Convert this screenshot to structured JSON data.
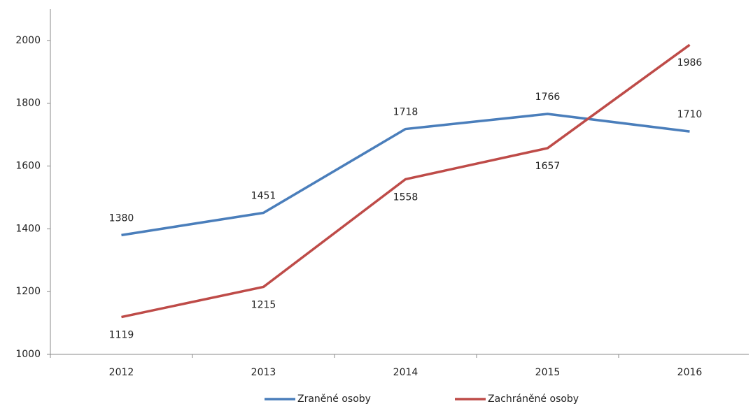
{
  "chart_data": {
    "type": "line",
    "categories": [
      "2012",
      "2013",
      "2014",
      "2015",
      "2016"
    ],
    "series": [
      {
        "name": "Zraněné osoby",
        "color": "#4a7ebb",
        "values": [
          1380,
          1451,
          1718,
          1766,
          1710
        ]
      },
      {
        "name": "Zachráněné osoby",
        "color": "#be4b48",
        "values": [
          1119,
          1215,
          1558,
          1657,
          1986
        ]
      }
    ],
    "ylim": [
      1000,
      2100
    ],
    "yticks": [
      1000,
      1200,
      1400,
      1600,
      1800,
      2000
    ],
    "grid": false,
    "legend": "bottom"
  }
}
